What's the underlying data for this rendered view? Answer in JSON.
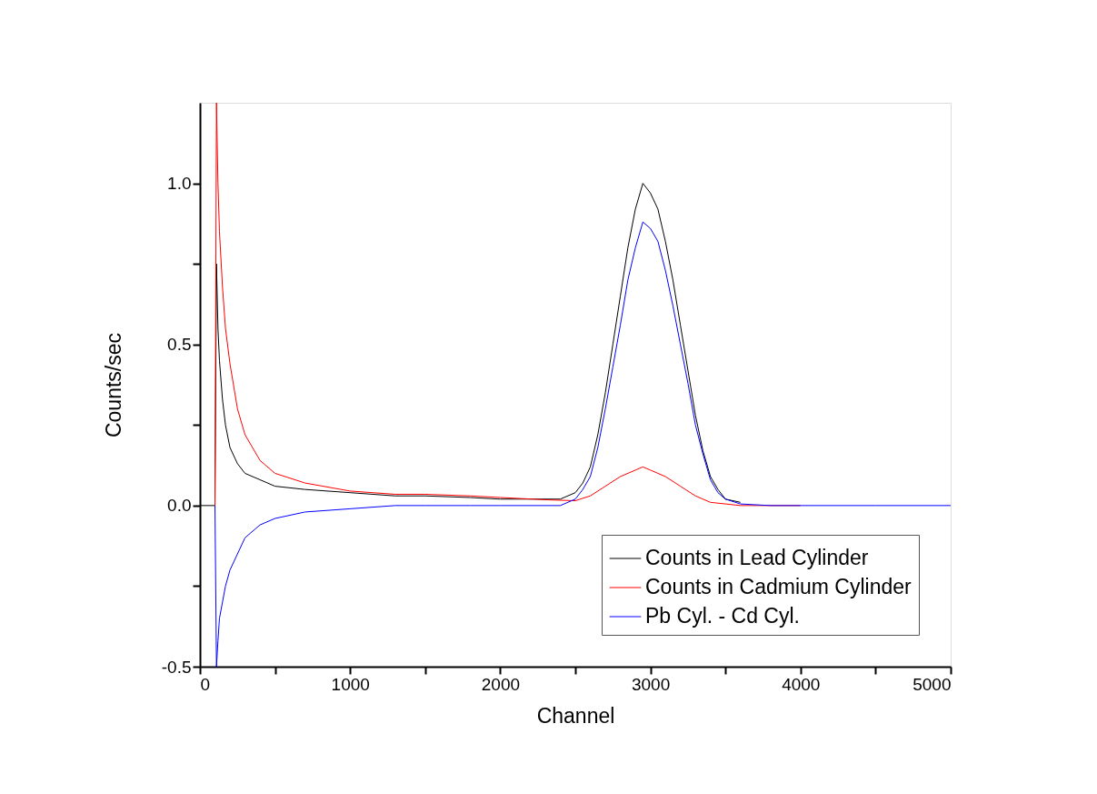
{
  "chart_data": {
    "type": "line",
    "xlabel": "Channel",
    "ylabel": "Counts/sec",
    "legend": "bottom right",
    "grid": false,
    "marker": "none",
    "line_style": "solid",
    "xlim": [
      0,
      5000
    ],
    "ylim": [
      -0.5,
      1.25
    ],
    "xticks": [
      0,
      {
        "value": 500,
        "label": null
      },
      1000,
      {
        "value": 1500,
        "label": null
      },
      2000,
      {
        "value": 2500,
        "label": null
      },
      3000,
      {
        "value": 3500,
        "label": null
      },
      4000,
      {
        "value": 4500,
        "label": null
      },
      5000
    ],
    "yticks": [
      {
        "value": -0.5,
        "label": "-0.5"
      },
      {
        "value": -0.25,
        "label": null
      },
      {
        "value": 0,
        "label": "0.0"
      },
      {
        "value": 0.25,
        "label": null
      },
      {
        "value": 0.5,
        "label": "0.5"
      },
      {
        "value": 0.75,
        "label": null
      },
      {
        "value": 1,
        "label": "1.0"
      }
    ],
    "series": [
      {
        "name": "Counts in Lead Cylinder",
        "color": "#000000",
        "x": [
          0,
          100,
          110,
          120,
          130,
          150,
          170,
          200,
          250,
          300,
          400,
          500,
          700,
          1000,
          1300,
          1500,
          1800,
          2000,
          2300,
          2400,
          2500,
          2550,
          2600,
          2650,
          2700,
          2750,
          2800,
          2850,
          2900,
          2950,
          3000,
          3050,
          3100,
          3150,
          3200,
          3250,
          3300,
          3350,
          3400,
          3450,
          3500,
          3600
        ],
        "values": [
          0,
          0,
          0.75,
          0.55,
          0.45,
          0.33,
          0.25,
          0.18,
          0.13,
          0.1,
          0.08,
          0.06,
          0.05,
          0.04,
          0.03,
          0.03,
          0.025,
          0.02,
          0.02,
          0.02,
          0.04,
          0.07,
          0.12,
          0.22,
          0.35,
          0.5,
          0.65,
          0.8,
          0.92,
          1.0,
          0.97,
          0.92,
          0.82,
          0.7,
          0.56,
          0.42,
          0.28,
          0.17,
          0.09,
          0.05,
          0.02,
          0.01
        ]
      },
      {
        "name": "Counts in Cadmium Cylinder",
        "color": "#ff0000",
        "x": [
          100,
          110,
          120,
          130,
          150,
          170,
          200,
          250,
          300,
          400,
          500,
          700,
          1000,
          1300,
          1500,
          1800,
          2000,
          2300,
          2500,
          2600,
          2700,
          2800,
          2900,
          2950,
          3000,
          3050,
          3100,
          3200,
          3300,
          3400,
          3500,
          3600,
          4000
        ],
        "values": [
          0,
          1.25,
          1.0,
          0.85,
          0.68,
          0.55,
          0.44,
          0.3,
          0.22,
          0.14,
          0.1,
          0.07,
          0.045,
          0.035,
          0.035,
          0.03,
          0.025,
          0.018,
          0.015,
          0.03,
          0.06,
          0.09,
          0.11,
          0.12,
          0.11,
          0.1,
          0.09,
          0.06,
          0.03,
          0.01,
          0.005,
          0,
          0
        ]
      },
      {
        "name": "Pb Cyl. - Cd Cyl.",
        "color": "#0000ff",
        "x": [
          100,
          110,
          120,
          130,
          150,
          170,
          200,
          250,
          300,
          400,
          500,
          700,
          1000,
          1300,
          1500,
          1800,
          2000,
          2300,
          2400,
          2500,
          2550,
          2600,
          2650,
          2700,
          2750,
          2800,
          2850,
          2900,
          2950,
          3000,
          3050,
          3100,
          3150,
          3200,
          3250,
          3300,
          3350,
          3400,
          3450,
          3500,
          3600,
          3800,
          4000,
          4500,
          5000
        ],
        "values": [
          0,
          -0.5,
          -0.42,
          -0.35,
          -0.3,
          -0.25,
          -0.2,
          -0.15,
          -0.1,
          -0.06,
          -0.04,
          -0.02,
          -0.01,
          0,
          0,
          0,
          0,
          0,
          0,
          0.02,
          0.05,
          0.09,
          0.18,
          0.3,
          0.43,
          0.56,
          0.7,
          0.8,
          0.88,
          0.86,
          0.82,
          0.73,
          0.62,
          0.5,
          0.38,
          0.25,
          0.16,
          0.08,
          0.04,
          0.02,
          0.005,
          0,
          0,
          0,
          0
        ]
      }
    ]
  }
}
